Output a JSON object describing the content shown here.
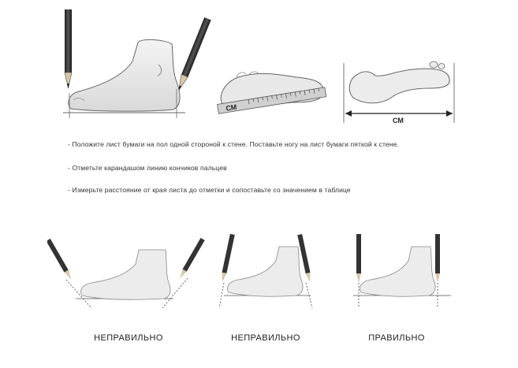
{
  "top": {
    "ruler_label": "СМ",
    "width_label": "СМ"
  },
  "instructions": [
    "- Положите лист бумаги на пол одной стороной к стене. Поставьте ногу на лист бумаги пяткой к стене.",
    "- Отметьте карандашом линию кончиков пальцев",
    "- Измерьте расстояние от края листа до отметки и сопоставьте со значением в таблице"
  ],
  "examples": [
    {
      "verdict": "НЕПРАВИЛЬНО"
    },
    {
      "verdict": "НЕПРАВИЛЬНО"
    },
    {
      "verdict": "ПРАВИЛЬНО"
    }
  ]
}
